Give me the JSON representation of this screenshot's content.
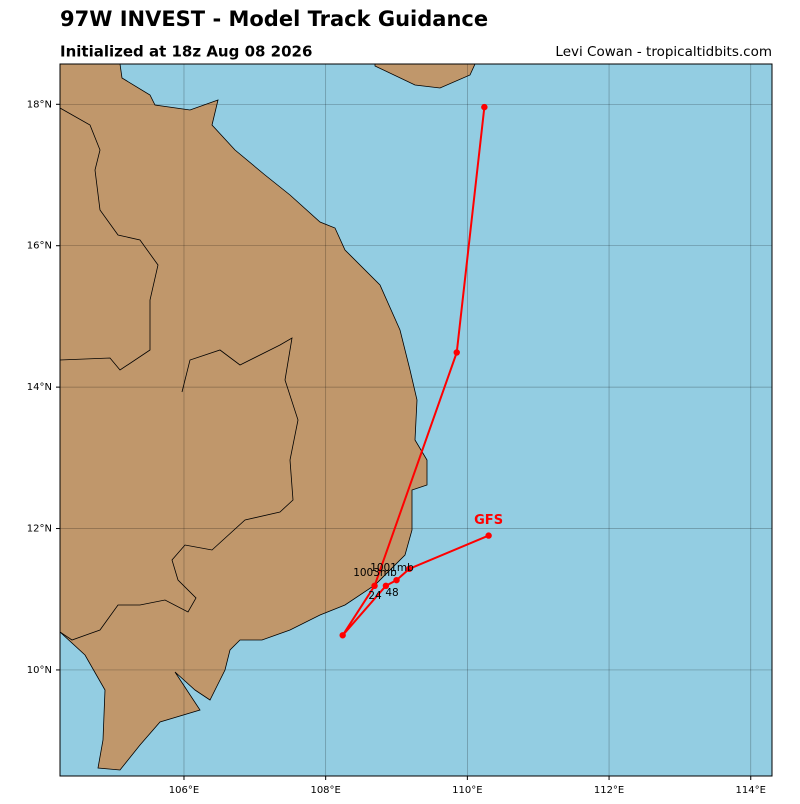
{
  "chart_data": {
    "type": "track",
    "title": "97W INVEST - Model Track Guidance",
    "subtitle": "Initialized at 18z Aug 08 2026",
    "credit": "Levi Cowan - tropicaltidbits.com",
    "xlim": [
      104.25,
      114.3
    ],
    "ylim": [
      8.5,
      18.57
    ],
    "xticks": [
      {
        "value": 106,
        "label": "106°E"
      },
      {
        "value": 108,
        "label": "108°E"
      },
      {
        "value": 110,
        "label": "110°E"
      },
      {
        "value": 112,
        "label": "112°E"
      },
      {
        "value": 114,
        "label": "114°E"
      }
    ],
    "yticks": [
      {
        "value": 10,
        "label": "10°N"
      },
      {
        "value": 12,
        "label": "12°N"
      },
      {
        "value": 14,
        "label": "14°N"
      },
      {
        "value": 16,
        "label": "16°N"
      },
      {
        "value": 18,
        "label": "18°N"
      }
    ],
    "grid": true,
    "series": [
      {
        "name": "GFS",
        "color": "#ff0000",
        "x": [
          110.3,
          109.18,
          109.0,
          108.85,
          108.24,
          108.69,
          109.85,
          110.24
        ],
        "values": [
          11.9,
          11.43,
          11.27,
          11.19,
          10.49,
          11.19,
          14.49,
          17.96
        ]
      }
    ],
    "annotations": [
      "1001mb",
      "1003mb",
      "24",
      "48"
    ]
  }
}
